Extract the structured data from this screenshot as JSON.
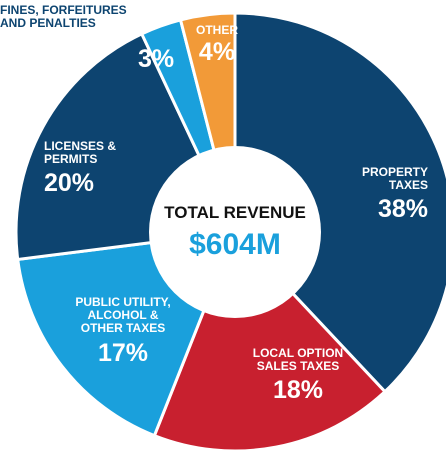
{
  "chart_data": {
    "type": "donut",
    "center_title": "TOTAL REVENUE",
    "center_value": "$604M",
    "categories": [
      "PROPERTY TAXES",
      "LOCAL OPTION SALES TAXES",
      "PUBLIC UTILITY, ALCOHOL & OTHER TAXES",
      "LICENSES & PERMITS",
      "FINES, FORFEITURES AND PENALTIES",
      "OTHER"
    ],
    "values": [
      38,
      18,
      17,
      20,
      3,
      4
    ],
    "value_labels": [
      "38%",
      "18%",
      "17%",
      "20%",
      "3%",
      "4%"
    ],
    "colors": [
      "#0d4470",
      "#c8202f",
      "#1aa0dc",
      "#0d4470",
      "#1aa0dc",
      "#f29a38"
    ]
  }
}
